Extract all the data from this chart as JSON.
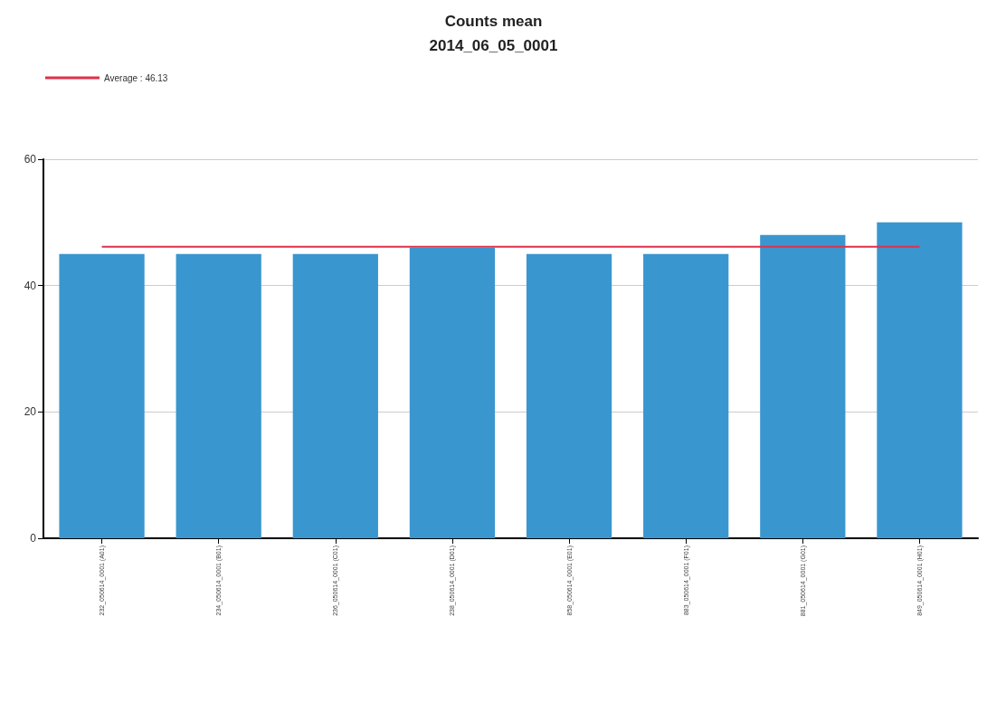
{
  "chart_data": {
    "type": "bar",
    "title": "Counts mean",
    "subtitle": "2014_06_05_0001",
    "categories": [
      "232_050614_0001 (A01)",
      "234_050614_0001 (B01)",
      "236_050614_0001 (C01)",
      "238_050614_0001 (D01)",
      "858_050614_0001 (E01)",
      "883_050614_0001 (F01)",
      "881_050614_0001 (G01)",
      "849_050614_0001 (H01)"
    ],
    "series": [
      {
        "color": "#3a96cf",
        "values": [
          45,
          45,
          45,
          46,
          45,
          45,
          48,
          50
        ]
      },
      {
        "type": "line",
        "name": "Average : 46.13",
        "color": "#e0304a",
        "values": [
          46.13,
          46.13,
          46.13,
          46.13,
          46.13,
          46.13,
          46.13,
          46.13
        ]
      }
    ],
    "ylim": [
      0,
      60
    ],
    "yticks": [
      0,
      20,
      40,
      60
    ],
    "grid": "y",
    "marker": "none",
    "line_style": "solid",
    "legend": "top left"
  }
}
